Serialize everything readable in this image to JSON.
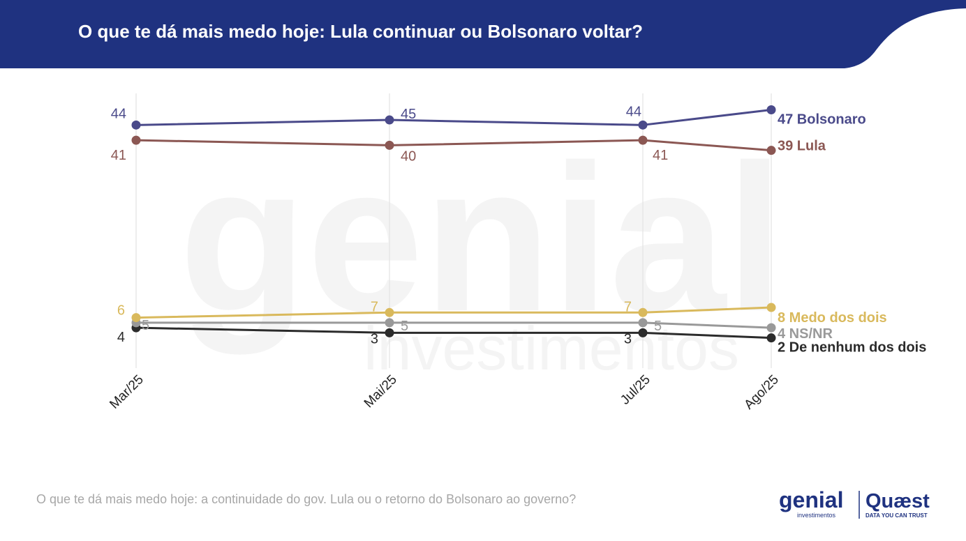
{
  "header": {
    "title": "O que te dá mais medo hoje: Lula continuar ou Bolsonaro voltar?"
  },
  "footnote": "O que te dá mais medo hoje: a continuidade do gov. Lula ou o retorno do Bolsonaro ao governo?",
  "logos": {
    "genial": "genial",
    "genial_sub": "investimentos",
    "quaest": "Quæst",
    "quaest_tagline": "DATA YOU CAN TRUST"
  },
  "watermark": {
    "text": "genial",
    "subtext": "investimentos"
  },
  "colors": {
    "header_bg": "#1f3280",
    "brand_navy": "#1f3280",
    "gridline": "#e3e3e3"
  },
  "chart_data": {
    "type": "line",
    "categories": [
      "Mar/25",
      "Mai/25",
      "Jul/25",
      "Ago/25"
    ],
    "grid": "vertical",
    "legend": "end-of-line labels",
    "series": [
      {
        "name": "Bolsonaro",
        "values": [
          44,
          45,
          44,
          47
        ],
        "color": "#4a4a8a"
      },
      {
        "name": "Lula",
        "values": [
          41,
          40,
          41,
          39
        ],
        "color": "#8b5753"
      },
      {
        "name": "Medo dos dois",
        "values": [
          6,
          7,
          7,
          8
        ],
        "color": "#d9b95c"
      },
      {
        "name": "NS/NR",
        "values": [
          5,
          5,
          5,
          4
        ],
        "color": "#999999"
      },
      {
        "name": "De nenhum dos dois",
        "values": [
          4,
          3,
          3,
          2
        ],
        "color": "#2b2b2b"
      }
    ]
  }
}
